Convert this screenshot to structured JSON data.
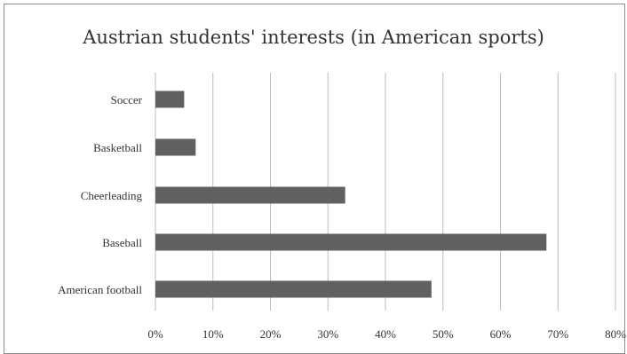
{
  "chart_data": {
    "type": "bar",
    "orientation": "horizontal",
    "title": "Austrian students' interests (in American sports)",
    "categories": [
      "Soccer",
      "Basketball",
      "Cheerleading",
      "Baseball",
      "American football"
    ],
    "values": [
      5,
      7,
      33,
      68,
      48
    ],
    "unit": "%",
    "xlim": [
      0,
      80
    ],
    "x_ticks": [
      "0%",
      "10%",
      "20%",
      "30%",
      "40%",
      "50%",
      "60%",
      "70%",
      "80%"
    ],
    "grid": "vertical",
    "legend": "none",
    "colors": {
      "bar": "#606060",
      "grid": "#bdbdbd",
      "text": "#333333"
    }
  }
}
